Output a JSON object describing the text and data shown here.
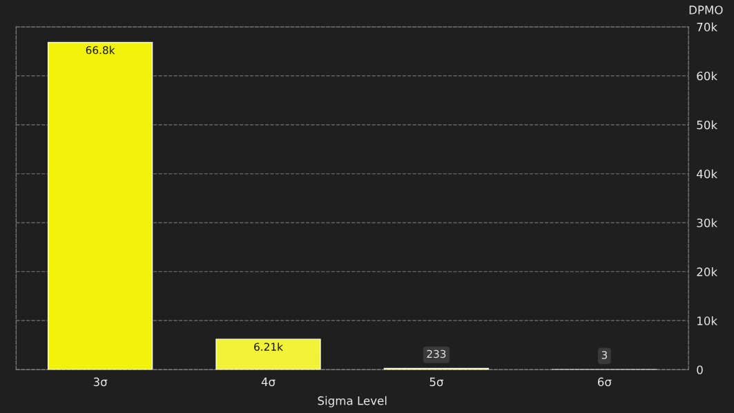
{
  "chart_data": {
    "type": "bar",
    "xlabel": "Sigma Level",
    "ylabel": "DPMO",
    "categories": [
      "3σ",
      "4σ",
      "5σ",
      "6σ"
    ],
    "values": [
      66800,
      6210,
      233,
      3
    ],
    "colors": [
      "#f2f20a",
      "#f2f238",
      "#f2f20a",
      "#f2f20a"
    ],
    "value_labels": [
      "66.8k",
      "6.21k",
      "233",
      "3"
    ],
    "ylim": [
      0,
      70000
    ],
    "yticks": [
      0,
      {
        "value": 10000,
        "label": "10k"
      },
      {
        "value": 20000,
        "label": "20k"
      },
      {
        "value": 30000,
        "label": "30k"
      },
      {
        "value": 40000,
        "label": "40k"
      },
      {
        "value": 50000,
        "label": "50k"
      },
      {
        "value": 60000,
        "label": "60k"
      },
      {
        "value": 70000,
        "label": "70k"
      }
    ],
    "grid": "y",
    "legend": false
  }
}
